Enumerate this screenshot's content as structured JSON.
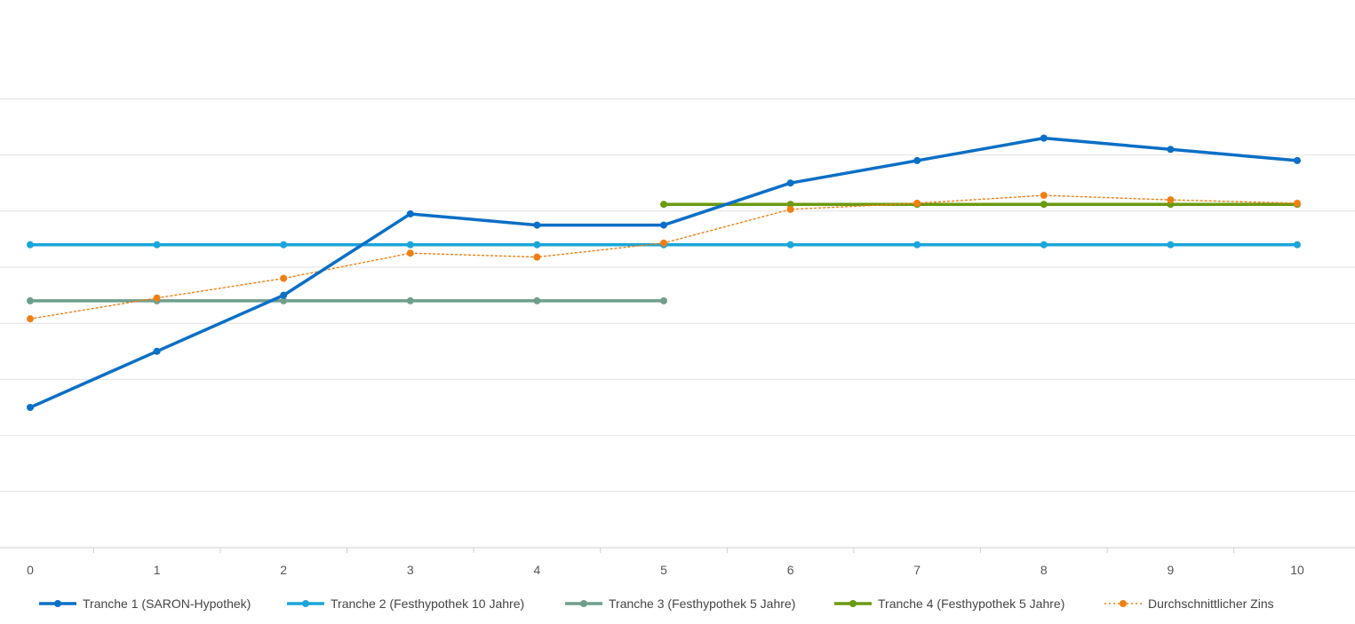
{
  "chart_data": {
    "type": "line",
    "x": [
      0,
      1,
      2,
      3,
      4,
      5,
      6,
      7,
      8,
      9,
      10
    ],
    "ylim": [
      0,
      8
    ],
    "grid": true,
    "legend_position": "bottom",
    "series": [
      {
        "name": "Tranche 1 (SARON-Hypothek)",
        "color": "#0a6fc6",
        "style": "solid-thick",
        "values": [
          2.5,
          3.5,
          4.5,
          5.95,
          5.75,
          5.75,
          6.5,
          6.9,
          7.3,
          7.1,
          6.9
        ]
      },
      {
        "name": "Tranche 2 (Festhypothek 10 Jahre)",
        "color": "#1aa6d9",
        "style": "solid-thick",
        "values": [
          5.4,
          5.4,
          5.4,
          5.4,
          5.4,
          5.4,
          5.4,
          5.4,
          5.4,
          5.4,
          5.4
        ]
      },
      {
        "name": "Tranche 3 (Festhypothek 5 Jahre)",
        "color": "#6f9f8c",
        "style": "solid-thick",
        "values": [
          4.4,
          4.4,
          4.4,
          4.4,
          4.4,
          4.4,
          null,
          null,
          null,
          null,
          null
        ]
      },
      {
        "name": "Tranche 4 (Festhypothek 5 Jahre)",
        "color": "#6a9a10",
        "style": "solid-thick",
        "values": [
          null,
          null,
          null,
          null,
          null,
          6.12,
          6.12,
          6.12,
          6.12,
          6.12,
          6.12
        ]
      },
      {
        "name": "Durchschnittlicher Zins",
        "color": "#f07f12",
        "style": "dotted",
        "values": [
          4.08,
          4.45,
          4.8,
          5.25,
          5.18,
          5.43,
          6.03,
          6.14,
          6.28,
          6.2,
          6.14
        ]
      }
    ]
  }
}
